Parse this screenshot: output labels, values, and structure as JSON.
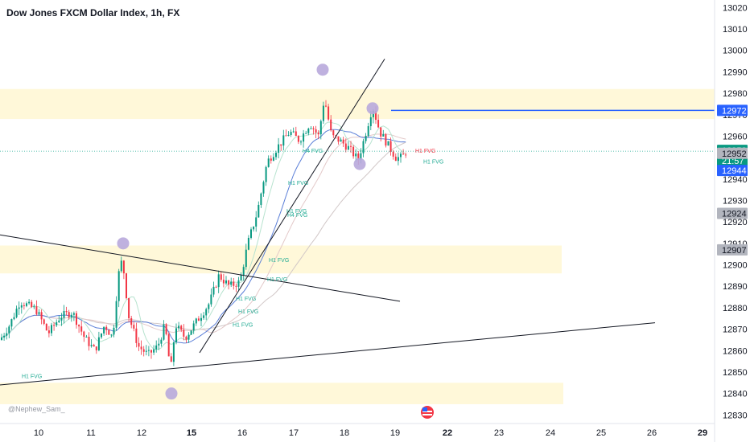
{
  "chart_data": {
    "type": "candlestick",
    "title": "Dow Jones FXCM Dollar Index, 1h, FX",
    "ylim": [
      12826,
      13022
    ],
    "y_ticks": [
      12830,
      12840,
      12850,
      12860,
      12870,
      12880,
      12890,
      12900,
      12910,
      12920,
      12930,
      12940,
      12950,
      12960,
      12970,
      12980,
      12990,
      13000,
      13010,
      13020
    ],
    "x_ticks": [
      {
        "label": "10",
        "bold": false
      },
      {
        "label": "11",
        "bold": false
      },
      {
        "label": "12",
        "bold": false
      },
      {
        "label": "15",
        "bold": true
      },
      {
        "label": "16",
        "bold": false
      },
      {
        "label": "17",
        "bold": false
      },
      {
        "label": "18",
        "bold": false
      },
      {
        "label": "19",
        "bold": false
      },
      {
        "label": "22",
        "bold": true
      },
      {
        "label": "23",
        "bold": false
      },
      {
        "label": "24",
        "bold": false
      },
      {
        "label": "25",
        "bold": false
      },
      {
        "label": "26",
        "bold": false
      },
      {
        "label": "29",
        "bold": true
      }
    ],
    "price_anchors": [
      [
        0,
        12865
      ],
      [
        12,
        12872
      ],
      [
        25,
        12883
      ],
      [
        45,
        12879
      ],
      [
        60,
        12868
      ],
      [
        75,
        12876
      ],
      [
        90,
        12878
      ],
      [
        105,
        12866
      ],
      [
        118,
        12860
      ],
      [
        130,
        12872
      ],
      [
        140,
        12866
      ],
      [
        147,
        12895
      ],
      [
        152,
        12903
      ],
      [
        160,
        12876
      ],
      [
        172,
        12862
      ],
      [
        184,
        12858
      ],
      [
        196,
        12862
      ],
      [
        205,
        12872
      ],
      [
        212,
        12850
      ],
      [
        218,
        12872
      ],
      [
        230,
        12866
      ],
      [
        245,
        12874
      ],
      [
        260,
        12882
      ],
      [
        272,
        12895
      ],
      [
        285,
        12890
      ],
      [
        298,
        12892
      ],
      [
        308,
        12910
      ],
      [
        320,
        12925
      ],
      [
        332,
        12948
      ],
      [
        345,
        12955
      ],
      [
        360,
        12962
      ],
      [
        372,
        12958
      ],
      [
        385,
        12966
      ],
      [
        396,
        12960
      ],
      [
        403,
        12978
      ],
      [
        412,
        12960
      ],
      [
        422,
        12958
      ],
      [
        432,
        12955
      ],
      [
        445,
        12949
      ],
      [
        452,
        12958
      ],
      [
        463,
        12974
      ],
      [
        472,
        12962
      ],
      [
        482,
        12956
      ],
      [
        492,
        12950
      ],
      [
        500,
        12950
      ],
      [
        506,
        12954
      ]
    ],
    "zones": [
      {
        "from": 12968,
        "to": 12982
      },
      {
        "from": 12896,
        "to": 12909
      },
      {
        "from": 12835,
        "to": 12845
      }
    ],
    "horizontal_line": {
      "price": 12972
    },
    "current_price": 12953,
    "price_labels": [
      {
        "price": 12972,
        "text": "12972",
        "style": "blue"
      },
      {
        "price": 12953,
        "text": "12953",
        "style": "green",
        "sub": "21:57"
      },
      {
        "price": 12952,
        "text": "12952",
        "style": "gray"
      },
      {
        "price": 12944,
        "text": "12944",
        "style": "blue"
      },
      {
        "price": 12924,
        "text": "12924",
        "style": "gray"
      },
      {
        "price": 12907,
        "text": "12907",
        "style": "gray"
      }
    ],
    "fvg_labels": [
      {
        "text": "H4 FVG",
        "price": 12953,
        "x": 376,
        "color": "#22ab94"
      },
      {
        "text": "H1 FVG",
        "price": 12938,
        "x": 358,
        "color": "#22ab94"
      },
      {
        "text": "H1 FVG",
        "price": 12925,
        "x": 356,
        "color": "#22ab94"
      },
      {
        "text": "H4 FVG",
        "price": 12923,
        "x": 357,
        "color": "#22ab94"
      },
      {
        "text": "H1 FVG",
        "price": 12902,
        "x": 334,
        "color": "#22ab94"
      },
      {
        "text": "H1 FVG",
        "price": 12893,
        "x": 332,
        "color": "#22ab94"
      },
      {
        "text": "H1 FVG",
        "price": 12884,
        "x": 293,
        "color": "#22ab94"
      },
      {
        "text": "H1 FVG",
        "price": 12878,
        "x": 296,
        "color": "#22ab94"
      },
      {
        "text": "H1 FVG",
        "price": 12872,
        "x": 289,
        "color": "#22ab94"
      },
      {
        "text": "H1 FVG",
        "price": 12848,
        "x": 27,
        "color": "#22ab94"
      },
      {
        "text": "H1 FVG",
        "price": 12953,
        "x": 516,
        "color": "#f23645"
      },
      {
        "text": "H1 FVG",
        "price": 12948,
        "x": 526,
        "color": "#22ab94"
      }
    ],
    "watermark": "@Nephew_Sam_"
  }
}
